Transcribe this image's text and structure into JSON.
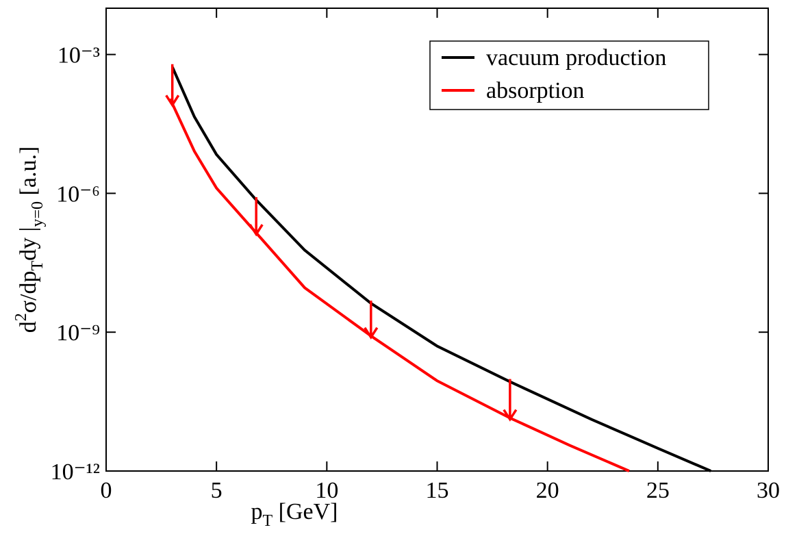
{
  "chart_data": {
    "type": "line",
    "xlabel": [
      "p",
      "T",
      " [GeV]"
    ],
    "ylabel": [
      "d",
      "2",
      "σ/dp",
      "T",
      "dy |",
      "y=0",
      " [a.u.]"
    ],
    "xlim": [
      0,
      30
    ],
    "ylim": [
      1e-12,
      0.01
    ],
    "ylog": true,
    "xticks": [
      0,
      5,
      10,
      15,
      20,
      25,
      30
    ],
    "yticks": [
      {
        "value": 1e-12,
        "label": "10⁻¹²"
      },
      {
        "value": 1e-09,
        "label": "10⁻⁹"
      },
      {
        "value": 1e-06,
        "label": "10⁻⁶"
      },
      {
        "value": 0.001,
        "label": "10⁻³"
      }
    ],
    "legend": "upper right",
    "series": [
      {
        "name": "vacuum production",
        "color": "#000000",
        "x": [
          3,
          4,
          5,
          6.8,
          9,
          12,
          15,
          18.3,
          22,
          25,
          27.4
        ],
        "values": [
          0.00054,
          4.5e-05,
          6.9e-06,
          7.2e-07,
          5.9e-08,
          4.2e-09,
          5e-10,
          8.5e-11,
          1.3e-11,
          3.1e-12,
          1e-12
        ]
      },
      {
        "name": "absorption",
        "color": "#ff0000",
        "x": [
          2.9,
          4,
          5,
          6.8,
          9,
          12,
          15,
          18.3,
          21,
          23.7
        ],
        "values": [
          0.00011,
          8.1e-06,
          1.3e-06,
          1.4e-07,
          9.1e-09,
          8.3e-10,
          8.9e-11,
          1.4e-11,
          3.6e-12,
          1e-12
        ]
      }
    ],
    "arrows": {
      "x": [
        3,
        6.8,
        12,
        18.3
      ],
      "color": "#ff0000"
    }
  }
}
